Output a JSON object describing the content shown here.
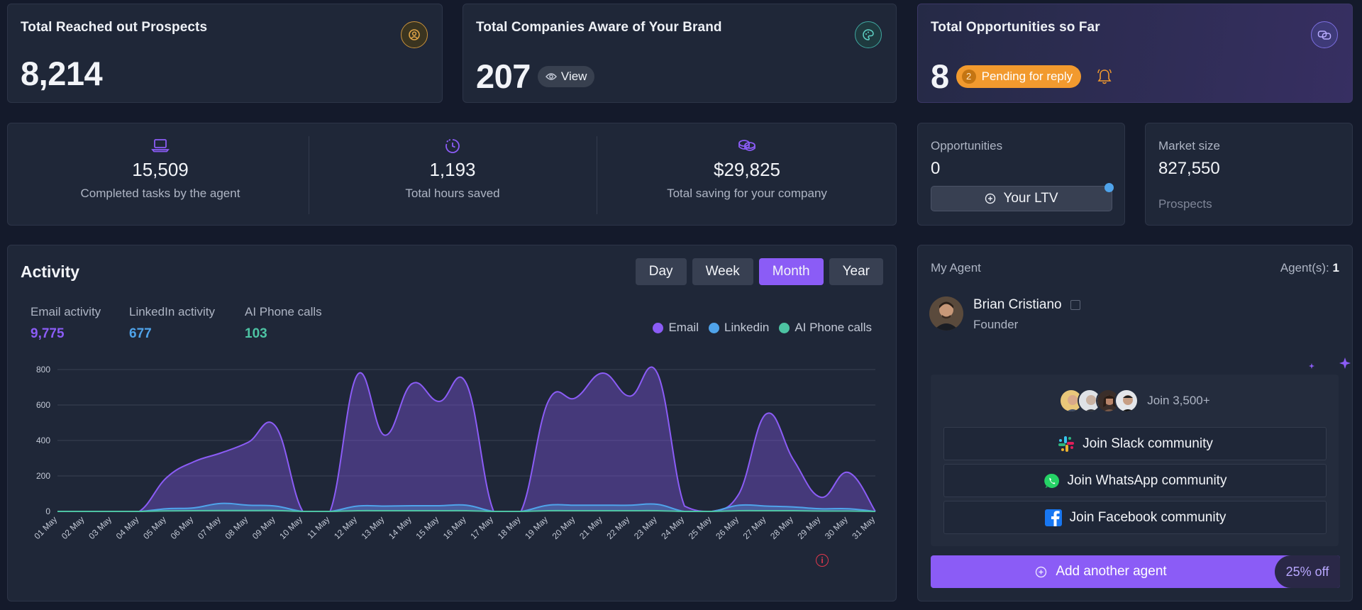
{
  "top_cards": {
    "prospects": {
      "title": "Total Reached out Prospects",
      "value": "8,214"
    },
    "companies": {
      "title": "Total Companies Aware of Your Brand",
      "value": "207",
      "view_label": "View"
    },
    "opportunities": {
      "title": "Total Opportunities so Far",
      "value": "8",
      "pending_count": "2",
      "pending_label": "Pending for reply"
    }
  },
  "stats": [
    {
      "value": "15,509",
      "label": "Completed tasks by the agent",
      "icon": "laptop-icon"
    },
    {
      "value": "1,193",
      "label": "Total hours saved",
      "icon": "clock-icon"
    },
    {
      "value": "$29,825",
      "label": "Total saving for your company",
      "icon": "coins-icon"
    }
  ],
  "opportunities_card": {
    "label": "Opportunities",
    "value": "0",
    "ltv_label": "Your LTV"
  },
  "market_card": {
    "label": "Market size",
    "value": "827,550",
    "sublabel": "Prospects"
  },
  "activity": {
    "title": "Activity",
    "tabs": [
      "Day",
      "Week",
      "Month",
      "Year"
    ],
    "active_tab": "Month",
    "metrics": [
      {
        "label": "Email activity",
        "value": "9,775",
        "color": "#8b5cf6"
      },
      {
        "label": "LinkedIn activity",
        "value": "677",
        "color": "#4fa3ea"
      },
      {
        "label": "AI Phone calls",
        "value": "103",
        "color": "#4dc3a3"
      }
    ],
    "legend": [
      "Email",
      "Linkedin",
      "AI Phone calls"
    ]
  },
  "chart_data": {
    "type": "area",
    "x": [
      "01 May",
      "02 May",
      "03 May",
      "04 May",
      "05 May",
      "06 May",
      "07 May",
      "08 May",
      "09 May",
      "10 May",
      "11 May",
      "12 May",
      "13 May",
      "14 May",
      "15 May",
      "16 May",
      "17 May",
      "18 May",
      "19 May",
      "20 May",
      "21 May",
      "22 May",
      "23 May",
      "24 May",
      "25 May",
      "26 May",
      "27 May",
      "28 May",
      "29 May",
      "30 May",
      "31 May"
    ],
    "series": [
      {
        "name": "Email",
        "color": "#8b5cf6",
        "values": [
          0,
          0,
          0,
          0,
          190,
          280,
          330,
          390,
          480,
          0,
          0,
          770,
          430,
          720,
          620,
          720,
          0,
          0,
          620,
          640,
          780,
          650,
          780,
          30,
          0,
          100,
          550,
          290,
          80,
          220,
          0
        ]
      },
      {
        "name": "Linkedin",
        "color": "#4fa3ea",
        "values": [
          0,
          0,
          0,
          0,
          15,
          20,
          45,
          35,
          30,
          0,
          0,
          30,
          30,
          32,
          32,
          35,
          0,
          0,
          35,
          35,
          35,
          35,
          40,
          0,
          0,
          35,
          30,
          25,
          15,
          15,
          0
        ]
      },
      {
        "name": "AI Phone calls",
        "color": "#4dc3a3",
        "values": [
          0,
          0,
          0,
          0,
          3,
          4,
          5,
          5,
          5,
          0,
          0,
          4,
          4,
          4,
          4,
          4,
          0,
          0,
          4,
          4,
          4,
          4,
          4,
          0,
          0,
          4,
          4,
          4,
          2,
          2,
          0
        ]
      }
    ],
    "yticks": [
      0,
      200,
      400,
      600,
      800
    ],
    "ylim": [
      0,
      800
    ],
    "grid": true,
    "legend_position": "top-right"
  },
  "agent": {
    "section_label": "My Agent",
    "count_label": "Agent(s):",
    "count_value": "1",
    "name": "Brian Cristiano",
    "role": "Founder"
  },
  "community": {
    "join_count": "Join 3,500+",
    "slack": "Join Slack community",
    "whatsapp": "Join WhatsApp community",
    "facebook": "Join Facebook community"
  },
  "add_agent": {
    "label": "Add another agent",
    "discount": "25% off"
  }
}
